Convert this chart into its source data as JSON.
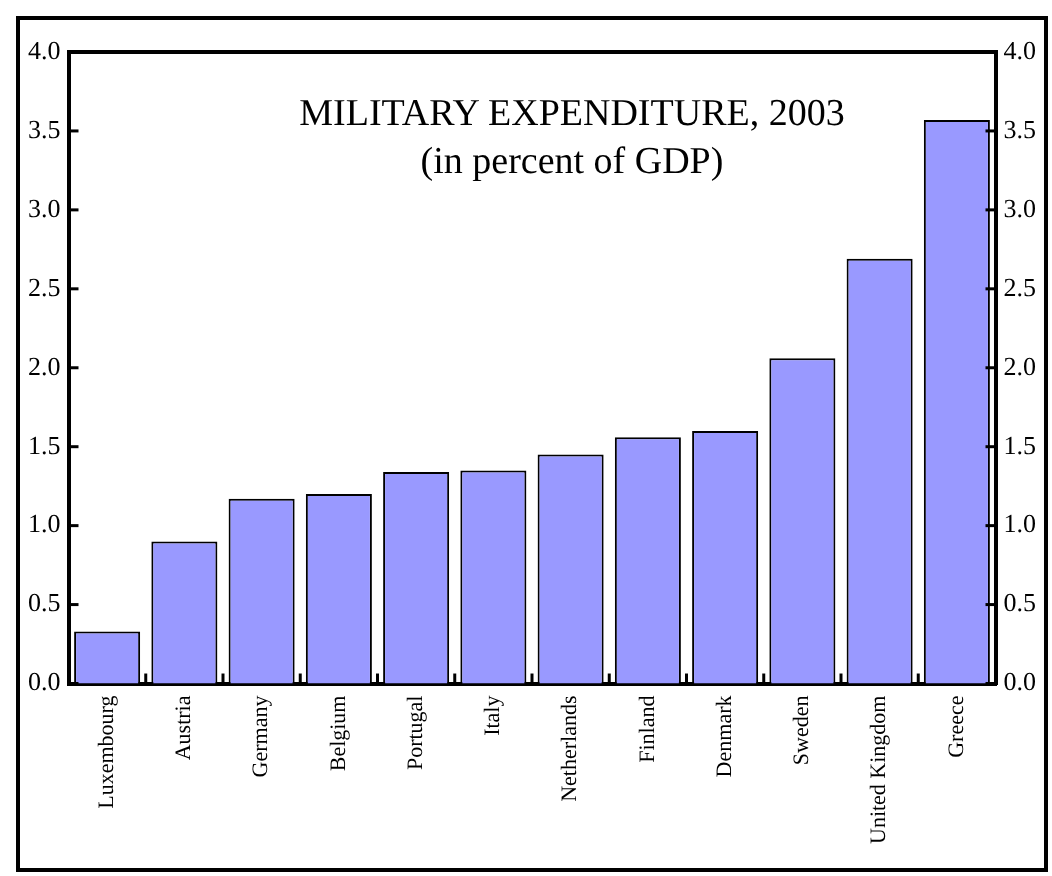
{
  "chart_data": {
    "type": "bar",
    "title": "MILITARY EXPENDITURE, 2003",
    "subtitle": "(in percent of GDP)",
    "categories": [
      "Luxembourg",
      "Austria",
      "Germany",
      "Belgium",
      "Portugal",
      "Italy",
      "Netherlands",
      "Finland",
      "Denmark",
      "Sweden",
      "United Kingdom",
      "Greece"
    ],
    "values": [
      0.33,
      0.9,
      1.17,
      1.2,
      1.34,
      1.35,
      1.45,
      1.56,
      1.6,
      2.06,
      2.69,
      3.57
    ],
    "color": "#9999ff",
    "ylim": [
      0,
      4
    ],
    "yticks": [
      {
        "value": 0,
        "label": "0.0"
      },
      {
        "value": 0.5,
        "label": "0.5"
      },
      {
        "value": 1,
        "label": "1.0"
      },
      {
        "value": 1.5,
        "label": "1.5"
      },
      {
        "value": 2,
        "label": "2.0"
      },
      {
        "value": 2.5,
        "label": "2.5"
      },
      {
        "value": 3,
        "label": "3.0"
      },
      {
        "value": 3.5,
        "label": "3.5"
      },
      {
        "value": 4,
        "label": "4.0"
      }
    ],
    "y2lim": [
      0,
      4
    ],
    "y2ticks": [
      {
        "value": 0,
        "label": "0.0"
      },
      {
        "value": 0.5,
        "label": "0.5"
      },
      {
        "value": 1,
        "label": "1.0"
      },
      {
        "value": 1.5,
        "label": "1.5"
      },
      {
        "value": 2,
        "label": "2.0"
      },
      {
        "value": 2.5,
        "label": "2.5"
      },
      {
        "value": 3,
        "label": "3.0"
      },
      {
        "value": 3.5,
        "label": "3.5"
      },
      {
        "value": 4,
        "label": "4.0"
      }
    ],
    "grid": false,
    "legend": false
  }
}
